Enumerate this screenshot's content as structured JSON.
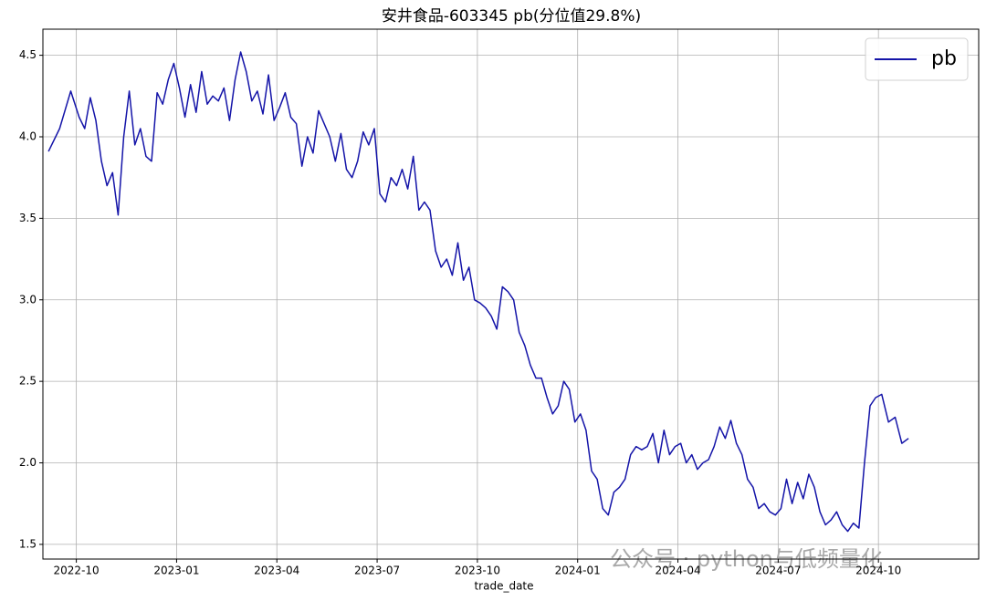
{
  "chart_data": {
    "type": "line",
    "title": "安井食品-603345 pb(分位值29.8%)",
    "x_label": "trade_date",
    "watermark": "公众号 · python与低频量化",
    "x": [
      "2022-09",
      "2022-09",
      "2022-09",
      "2022-10",
      "2022-10",
      "2022-10",
      "2022-10",
      "2022-10",
      "2022-10",
      "2022-11",
      "2022-11",
      "2022-11",
      "2022-11",
      "2022-11",
      "2022-11",
      "2022-12",
      "2022-12",
      "2022-12",
      "2022-12",
      "2022-12",
      "2022-12",
      "2023-01",
      "2023-01",
      "2023-01",
      "2023-01",
      "2023-01",
      "2023-01",
      "2023-02",
      "2023-02",
      "2023-02",
      "2023-02",
      "2023-02",
      "2023-02",
      "2023-03",
      "2023-03",
      "2023-03",
      "2023-03",
      "2023-03",
      "2023-03",
      "2023-04",
      "2023-04",
      "2023-04",
      "2023-04",
      "2023-04",
      "2023-04",
      "2023-05",
      "2023-05",
      "2023-05",
      "2023-05",
      "2023-05",
      "2023-05",
      "2023-06",
      "2023-06",
      "2023-06",
      "2023-06",
      "2023-06",
      "2023-06",
      "2023-07",
      "2023-07",
      "2023-07",
      "2023-07",
      "2023-07",
      "2023-07",
      "2023-08",
      "2023-08",
      "2023-08",
      "2023-08",
      "2023-08",
      "2023-08",
      "2023-09",
      "2023-09",
      "2023-09",
      "2023-09",
      "2023-09",
      "2023-09",
      "2023-10",
      "2023-10",
      "2023-10",
      "2023-10",
      "2023-10",
      "2023-10",
      "2023-11",
      "2023-11",
      "2023-11",
      "2023-11",
      "2023-11",
      "2023-11",
      "2023-12",
      "2023-12",
      "2023-12",
      "2023-12",
      "2023-12",
      "2023-12",
      "2024-01",
      "2024-01",
      "2024-01",
      "2024-01",
      "2024-01",
      "2024-01",
      "2024-02",
      "2024-02",
      "2024-02",
      "2024-02",
      "2024-02",
      "2024-02",
      "2024-03",
      "2024-03",
      "2024-03",
      "2024-03",
      "2024-03",
      "2024-03",
      "2024-04",
      "2024-04",
      "2024-04",
      "2024-04",
      "2024-04",
      "2024-04",
      "2024-05",
      "2024-05",
      "2024-05",
      "2024-05",
      "2024-05",
      "2024-05",
      "2024-06",
      "2024-06",
      "2024-06",
      "2024-06",
      "2024-06",
      "2024-06",
      "2024-07",
      "2024-07",
      "2024-07",
      "2024-07",
      "2024-07",
      "2024-07",
      "2024-08",
      "2024-08",
      "2024-08",
      "2024-08",
      "2024-08",
      "2024-08",
      "2024-09",
      "2024-09",
      "2024-09",
      "2024-09",
      "2024-09",
      "2024-09",
      "2024-10",
      "2024-10",
      "2024-10",
      "2024-10",
      "2024-10"
    ],
    "series": [
      {
        "name": "pb",
        "color": "#1414a8",
        "values": [
          3.91,
          4.05,
          4.28,
          4.12,
          4.05,
          4.24,
          4.1,
          3.85,
          3.7,
          3.78,
          3.52,
          4.0,
          4.28,
          3.95,
          4.05,
          3.88,
          3.85,
          4.27,
          4.2,
          4.35,
          4.45,
          4.3,
          4.12,
          4.32,
          4.15,
          4.4,
          4.2,
          4.25,
          4.22,
          4.3,
          4.1,
          4.35,
          4.52,
          4.4,
          4.22,
          4.28,
          4.14,
          4.38,
          4.1,
          4.18,
          4.27,
          4.12,
          4.08,
          3.82,
          4.0,
          3.9,
          4.16,
          4.08,
          4.0,
          3.85,
          4.02,
          3.8,
          3.75,
          3.85,
          4.03,
          3.95,
          4.05,
          3.65,
          3.6,
          3.75,
          3.7,
          3.8,
          3.68,
          3.88,
          3.55,
          3.6,
          3.55,
          3.3,
          3.2,
          3.25,
          3.15,
          3.35,
          3.12,
          3.2,
          3.0,
          2.98,
          2.95,
          2.9,
          2.82,
          3.08,
          3.05,
          3.0,
          2.8,
          2.72,
          2.6,
          2.52,
          2.52,
          2.4,
          2.3,
          2.35,
          2.5,
          2.45,
          2.25,
          2.3,
          2.2,
          1.95,
          1.9,
          1.72,
          1.68,
          1.82,
          1.85,
          1.9,
          2.05,
          2.1,
          2.08,
          2.1,
          2.18,
          2.0,
          2.2,
          2.05,
          2.1,
          2.12,
          2.0,
          2.05,
          1.96,
          2.0,
          2.02,
          2.1,
          2.22,
          2.15,
          2.26,
          2.12,
          2.05,
          1.9,
          1.85,
          1.72,
          1.75,
          1.7,
          1.68,
          1.72,
          1.9,
          1.75,
          1.88,
          1.78,
          1.93,
          1.85,
          1.7,
          1.62,
          1.65,
          1.7,
          1.62,
          1.58,
          1.63,
          1.6,
          2.0,
          2.35,
          2.4,
          2.42,
          2.25,
          2.28,
          2.12,
          2.15
        ]
      }
    ],
    "xlim": [
      "2022-09",
      "2025-01"
    ],
    "xticks": [
      "2022-10",
      "2023-01",
      "2023-04",
      "2023-07",
      "2023-10",
      "2024-01",
      "2024-04",
      "2024-07",
      "2024-10"
    ],
    "ylim": [
      1.41,
      4.66
    ],
    "yticks": [
      1.5,
      {
        "value": 2,
        "label": "2.0"
      },
      2.5,
      {
        "value": 3,
        "label": "3.0"
      },
      3.5,
      {
        "value": 4,
        "label": "4.0"
      },
      4.5
    ],
    "grid": true,
    "legend": "upper right"
  }
}
